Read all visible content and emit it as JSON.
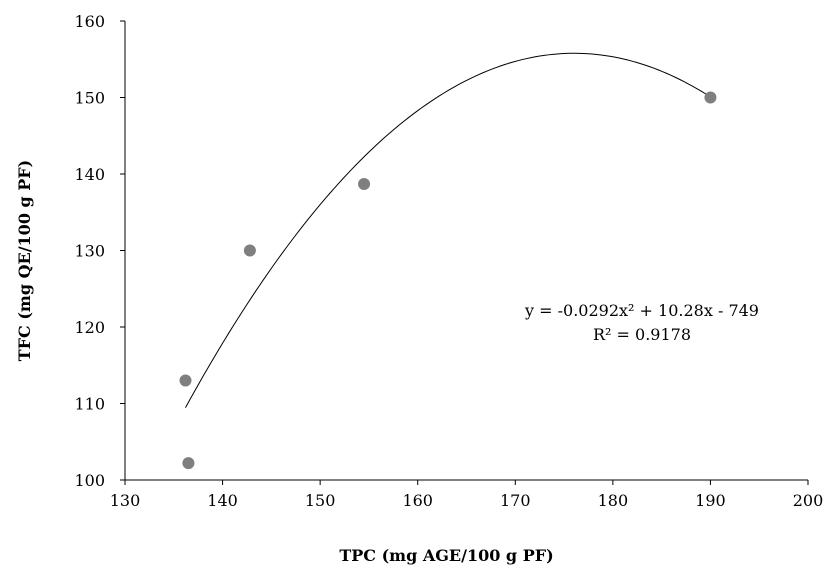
{
  "chart_data": {
    "type": "scatter",
    "title": "",
    "xlabel": "TPC (mg AGE/100 g PF)",
    "ylabel": "TFC  (mg QE/100 g PF)",
    "xlim": [
      130,
      200
    ],
    "ylim": [
      100,
      160
    ],
    "x_ticks": [
      "130",
      "140",
      "150",
      "160",
      "170",
      "180",
      "190",
      "200"
    ],
    "y_ticks": [
      "100",
      "110",
      "120",
      "130",
      "140",
      "150",
      "160"
    ],
    "grid": false,
    "legend": "none",
    "series": [
      {
        "points": [
          {
            "x": 136.2,
            "y": 113
          },
          {
            "x": 136.5,
            "y": 102.2
          },
          {
            "x": 142.8,
            "y": 130
          },
          {
            "x": 154.5,
            "y": 138.7
          },
          {
            "x": 190,
            "y": 150
          }
        ],
        "color": "#7f7f7f"
      }
    ],
    "trendline": {
      "type": "polynomial",
      "order": 2,
      "coefficients": [
        -0.0292,
        10.28,
        -749
      ],
      "x_range": [
        136.2,
        190
      ],
      "color": "#000000",
      "equation_label": "y = -0.0292x² + 10.28x - 749",
      "r2_label": "R² = 0.9178"
    }
  }
}
